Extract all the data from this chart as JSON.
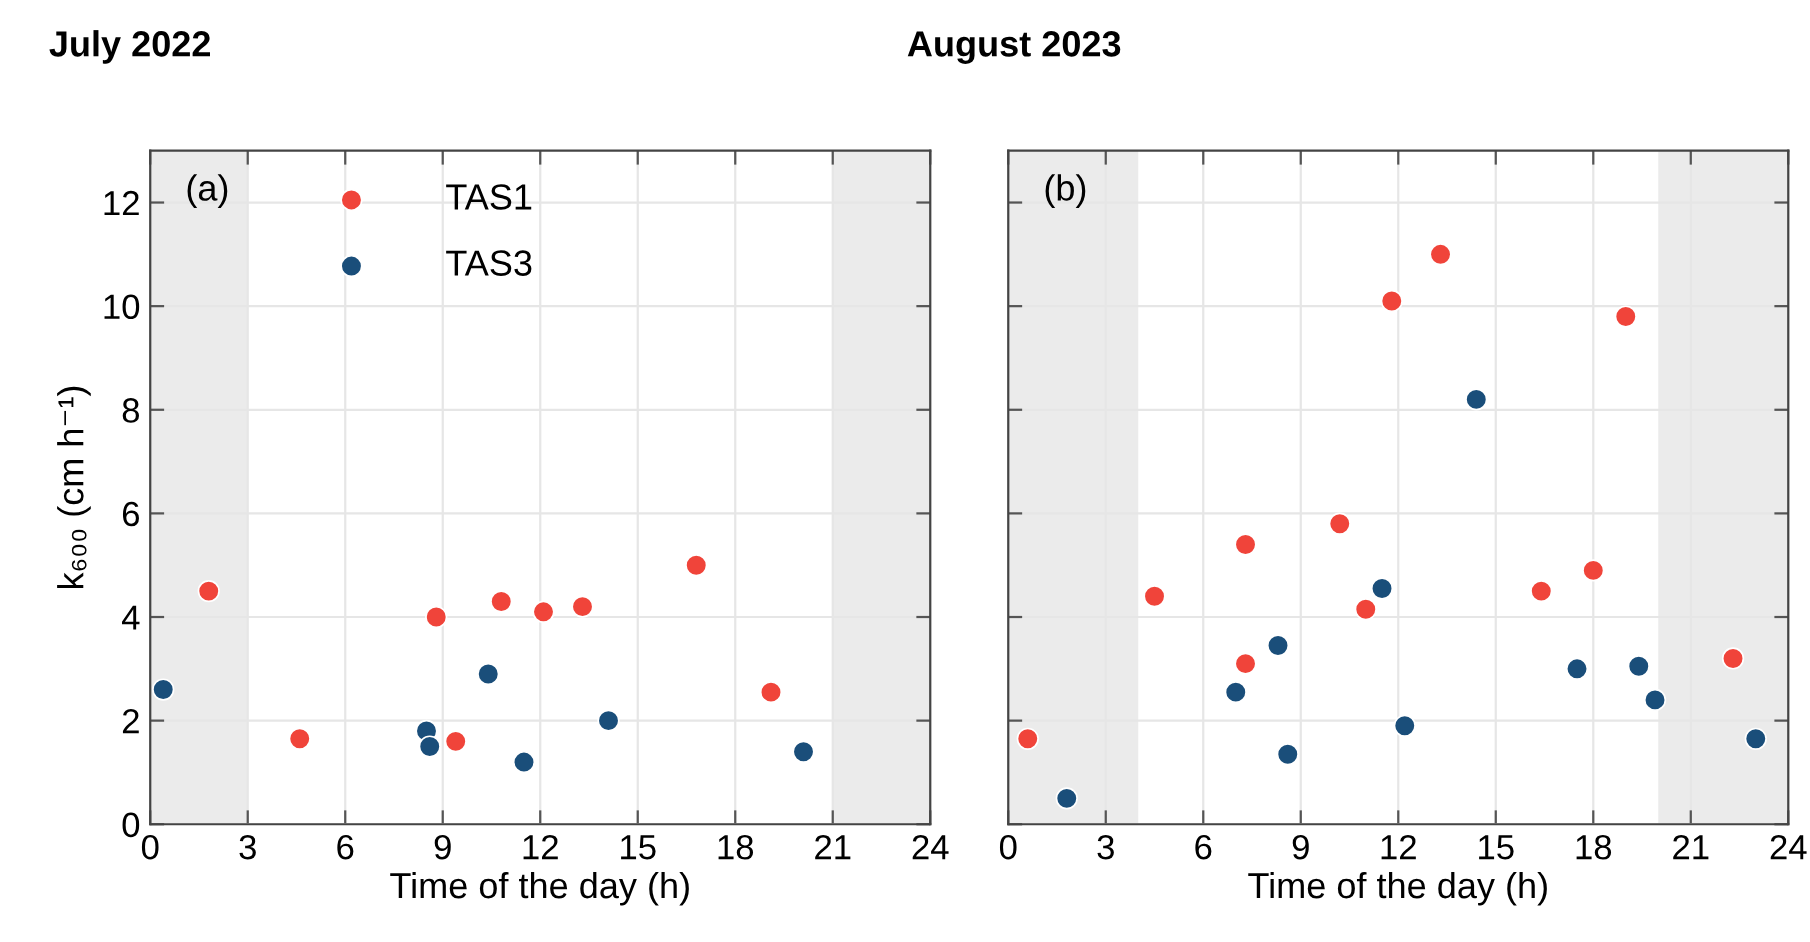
{
  "chart_data": [
    {
      "type": "scatter",
      "title": "July 2022",
      "xlabel": "Time of the day (h)",
      "ylabel": "k₆₀₀ (cm h⁻¹)",
      "annotations": [
        "(a)"
      ],
      "xlim": [
        0,
        24
      ],
      "xticks": [
        0,
        3,
        6,
        9,
        12,
        15,
        18,
        21,
        24
      ],
      "ylim": [
        0,
        13
      ],
      "yticks": [
        0,
        2,
        4,
        6,
        8,
        10,
        12
      ],
      "grid": true,
      "legend": "top left",
      "marker": "circle",
      "bands": [
        {
          "axis": "x",
          "from": 0,
          "to": 3,
          "color": "#ebebeb"
        },
        {
          "axis": "x",
          "from": 21,
          "to": 24,
          "color": "#ebebeb"
        }
      ],
      "series": [
        {
          "name": "TAS1",
          "color": "#f0443a",
          "x": [
            1.8,
            4.6,
            8.8,
            9.4,
            10.8,
            12.1,
            13.3,
            16.8,
            19.1
          ],
          "values": [
            4.5,
            1.65,
            4.0,
            1.6,
            4.3,
            4.1,
            4.2,
            5.0,
            2.55
          ]
        },
        {
          "name": "TAS3",
          "color": "#1a4e7a",
          "x": [
            0.4,
            8.5,
            8.6,
            10.4,
            11.5,
            14.1,
            20.1
          ],
          "values": [
            2.6,
            1.8,
            1.5,
            2.9,
            1.2,
            2.0,
            1.4
          ]
        }
      ]
    },
    {
      "type": "scatter",
      "title": "August 2023",
      "xlabel": "Time of the day (h)",
      "annotations": [
        "(b)"
      ],
      "xlim": [
        0,
        24
      ],
      "xticks": [
        0,
        3,
        6,
        9,
        12,
        15,
        18,
        21,
        24
      ],
      "ylim": [
        0,
        13
      ],
      "yticks": [
        0,
        2,
        4,
        6,
        8,
        10,
        12
      ],
      "grid": true,
      "marker": "circle",
      "tick_labels": "x",
      "bands": [
        {
          "axis": "x",
          "from": 0,
          "to": 4,
          "color": "#ebebeb"
        },
        {
          "axis": "x",
          "from": 20,
          "to": 24,
          "color": "#ebebeb"
        }
      ],
      "series": [
        {
          "color": "#f0443a",
          "x": [
            0.6,
            4.5,
            7.3,
            7.3,
            10.2,
            11.0,
            11.8,
            13.3,
            16.4,
            18.0,
            19.0,
            22.3
          ],
          "values": [
            1.65,
            4.4,
            3.1,
            5.4,
            5.8,
            4.15,
            10.1,
            11.0,
            4.5,
            4.9,
            9.8,
            3.2
          ]
        },
        {
          "color": "#1a4e7a",
          "x": [
            1.8,
            7.0,
            8.3,
            8.6,
            11.5,
            12.2,
            14.4,
            17.5,
            19.4,
            19.9,
            23.0
          ],
          "values": [
            0.5,
            2.55,
            3.45,
            1.35,
            4.55,
            1.9,
            8.2,
            3.0,
            3.05,
            2.4,
            1.65
          ]
        }
      ]
    }
  ]
}
